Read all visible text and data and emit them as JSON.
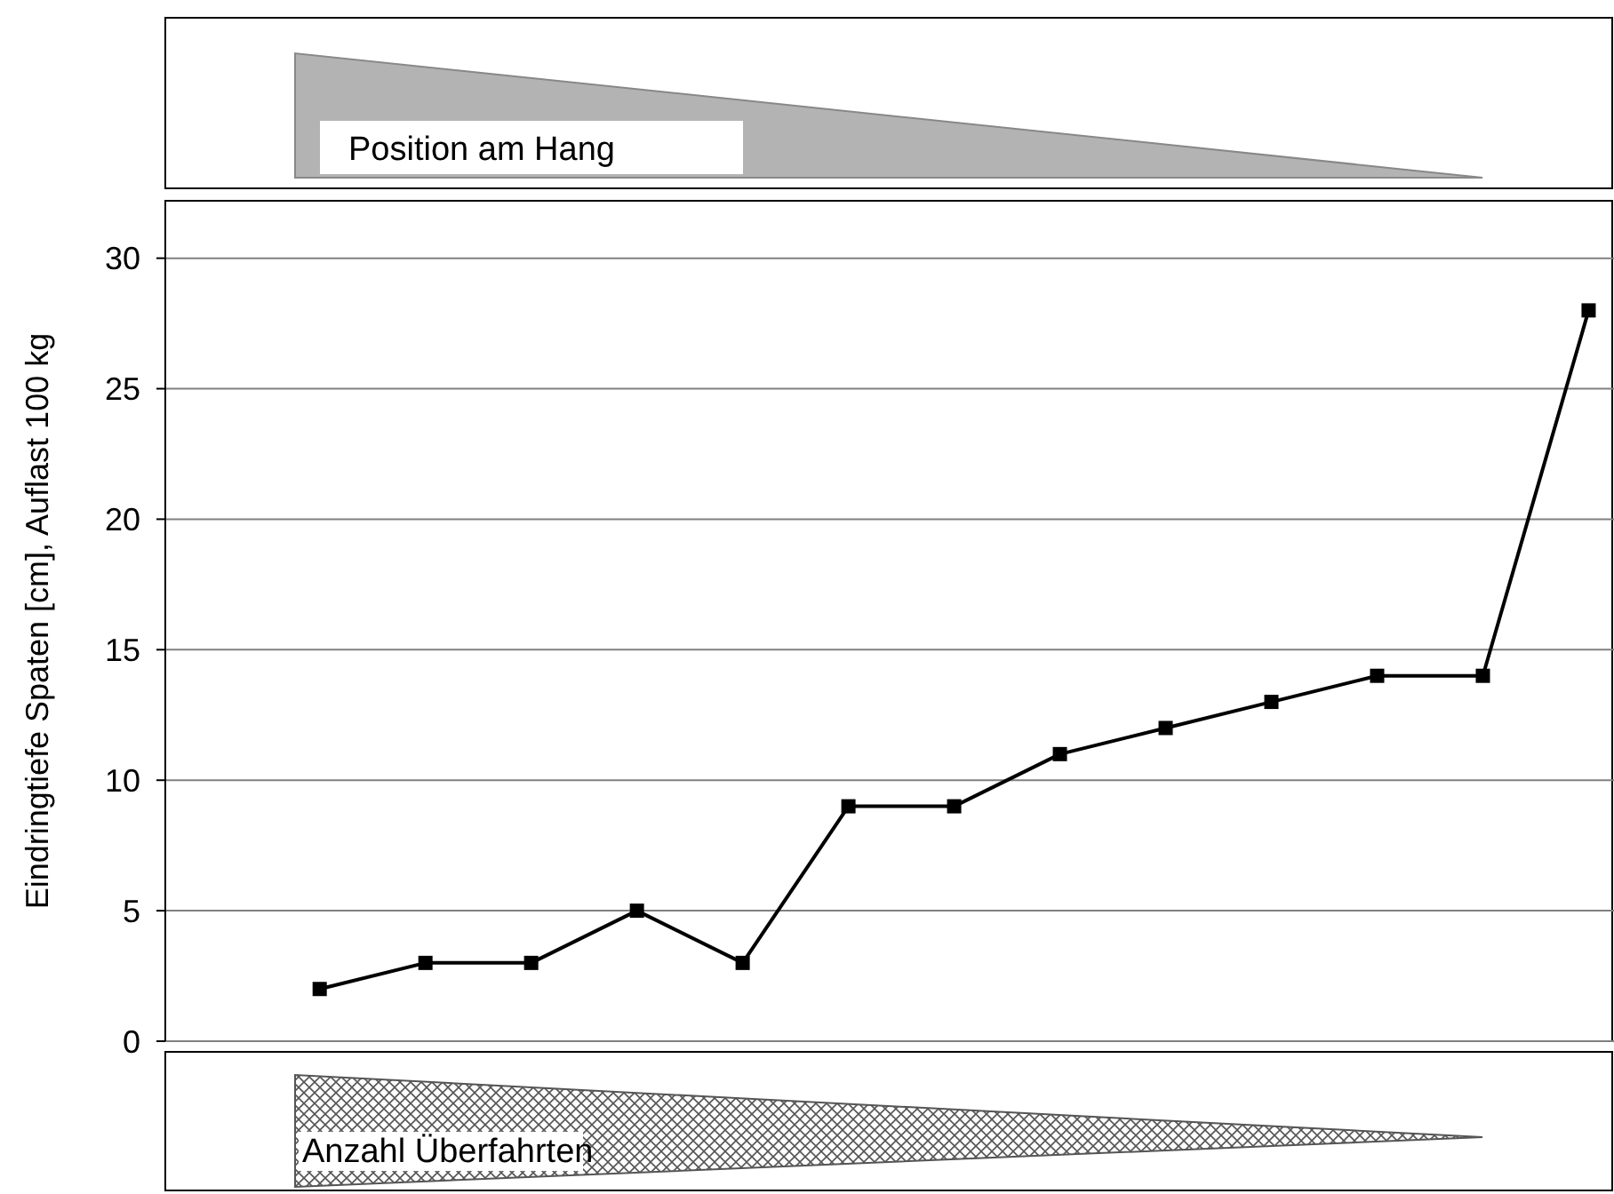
{
  "chart_data": {
    "type": "line",
    "ylabel": "Eindringtiefe Spaten [cm], Auflast 100 kg",
    "categories": [
      null,
      null,
      null,
      null,
      null,
      null,
      null,
      null,
      null,
      null,
      null,
      null,
      null
    ],
    "series": [
      {
        "color": "#000000",
        "values": [
          2,
          3,
          3,
          5,
          3,
          9,
          9,
          11,
          12,
          13,
          14,
          14,
          28
        ]
      }
    ],
    "ylim": [
      0,
      32.2
    ],
    "yticks": [
      0,
      5,
      10,
      15,
      20,
      25,
      30
    ],
    "grid": "y",
    "marker": "square",
    "line_style": "solid",
    "annotations": [
      "Position am Hang",
      "Anzahl Überfahrten"
    ]
  }
}
